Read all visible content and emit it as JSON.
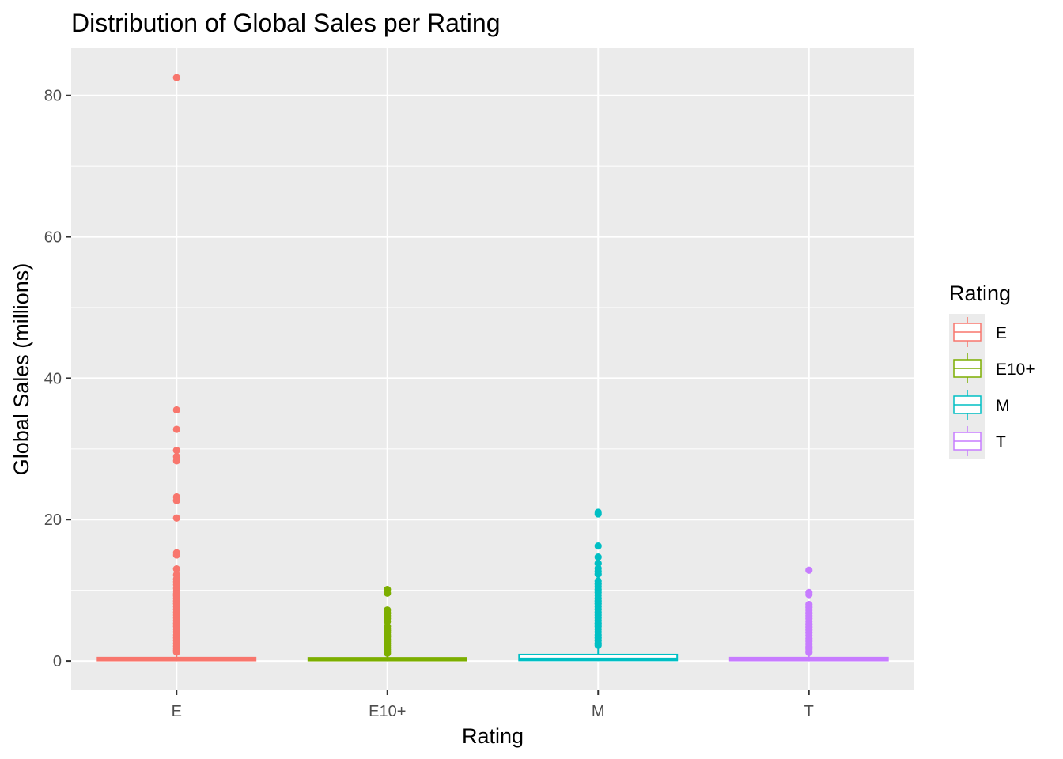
{
  "chart_data": {
    "type": "boxplot",
    "title": "Distribution of Global Sales per Rating",
    "xlabel": "Rating",
    "ylabel": "Global Sales (millions)",
    "categories": [
      "E",
      "E10+",
      "M",
      "T"
    ],
    "colors": {
      "E": "#F8766D",
      "E10+": "#7CAE00",
      "M": "#00BFC4",
      "T": "#C77CFF"
    },
    "ylim": [
      -4.13,
      86.68
    ],
    "y_ticks": [
      0,
      20,
      40,
      60,
      80
    ],
    "y_tick_labels": [
      "0",
      "20",
      "40",
      "60",
      "80"
    ],
    "grid": true,
    "panel_background": "#EBEBEB",
    "legend": {
      "title": "Rating",
      "position": "right",
      "entries": [
        "E",
        "E10+",
        "M",
        "T"
      ]
    },
    "boxes": [
      {
        "category": "E",
        "min": 0.01,
        "q1": 0.06,
        "median": 0.17,
        "q3": 0.47,
        "max": 1.08,
        "outliers": [
          82.53,
          35.52,
          32.77,
          29.8,
          28.92,
          28.32,
          23.21,
          22.7,
          20.22,
          15.3,
          15.0,
          13.02,
          12.2,
          11.6,
          11.2,
          10.8,
          10.3,
          9.9,
          9.5,
          9.2,
          8.9,
          8.5,
          8.1,
          7.7,
          7.3,
          6.9,
          6.5,
          6.1,
          5.7,
          5.3,
          4.9,
          4.5,
          4.1,
          3.7,
          3.3,
          2.9,
          2.5,
          2.1,
          1.8,
          1.5,
          1.25
        ]
      },
      {
        "category": "E10+",
        "min": 0.01,
        "q1": 0.06,
        "median": 0.17,
        "q3": 0.44,
        "max": 1.02,
        "outliers": [
          10.12,
          9.6,
          7.2,
          6.8,
          6.4,
          6.0,
          5.6,
          4.9,
          4.6,
          4.3,
          4.0,
          3.7,
          3.4,
          3.1,
          2.8,
          2.5,
          2.2,
          1.9,
          1.6,
          1.35,
          1.1
        ]
      },
      {
        "category": "M",
        "min": 0.01,
        "q1": 0.08,
        "median": 0.24,
        "q3": 0.91,
        "max": 2.15,
        "outliers": [
          21.04,
          20.81,
          16.27,
          14.7,
          13.8,
          13.1,
          12.7,
          12.3,
          11.3,
          10.9,
          10.5,
          10.1,
          9.7,
          9.3,
          8.9,
          8.5,
          8.1,
          7.7,
          7.3,
          6.9,
          6.5,
          6.1,
          5.7,
          5.3,
          4.9,
          4.5,
          4.1,
          3.7,
          3.3,
          2.9,
          2.5,
          2.25
        ]
      },
      {
        "category": "T",
        "min": 0.01,
        "q1": 0.06,
        "median": 0.17,
        "q3": 0.47,
        "max": 1.08,
        "outliers": [
          12.84,
          9.7,
          9.4,
          8.0,
          7.6,
          7.2,
          6.8,
          6.4,
          6.0,
          5.6,
          5.2,
          4.8,
          4.4,
          4.0,
          3.6,
          3.2,
          2.8,
          2.4,
          2.0,
          1.7,
          1.4,
          1.2
        ]
      }
    ]
  }
}
